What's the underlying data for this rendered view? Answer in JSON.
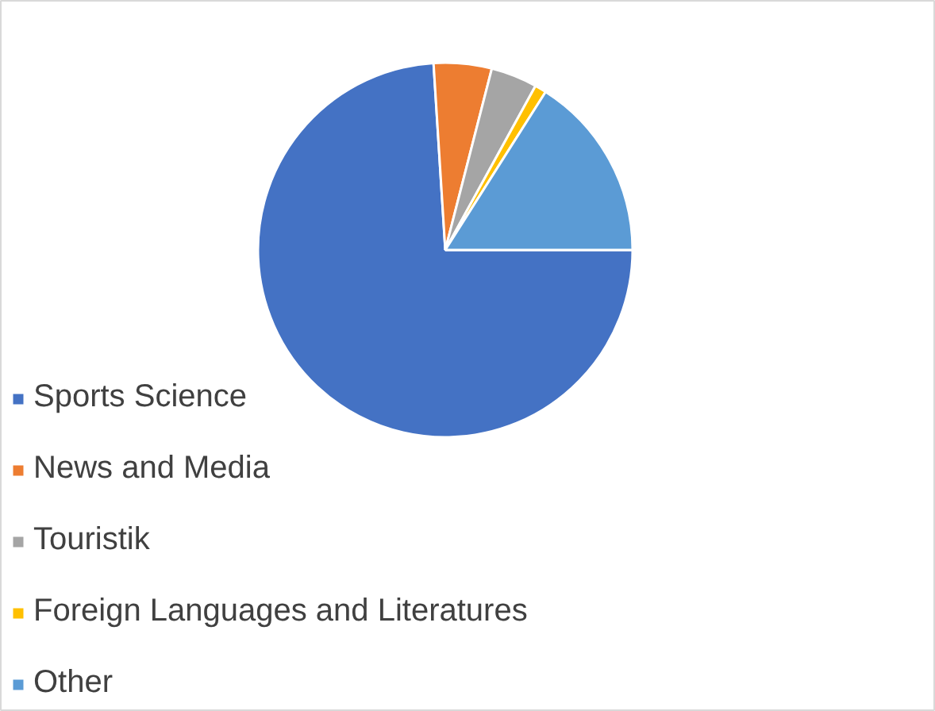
{
  "chart_data": {
    "type": "pie",
    "categories": [
      "Sports Science",
      "News and Media",
      "Touristik",
      "Foreign Languages and Literatures",
      "Other"
    ],
    "values": [
      74,
      5,
      4,
      1,
      16
    ],
    "colors": [
      "#4472c4",
      "#ed7d31",
      "#a5a5a5",
      "#ffc000",
      "#5b9bd5"
    ],
    "legend": "bottom left"
  }
}
